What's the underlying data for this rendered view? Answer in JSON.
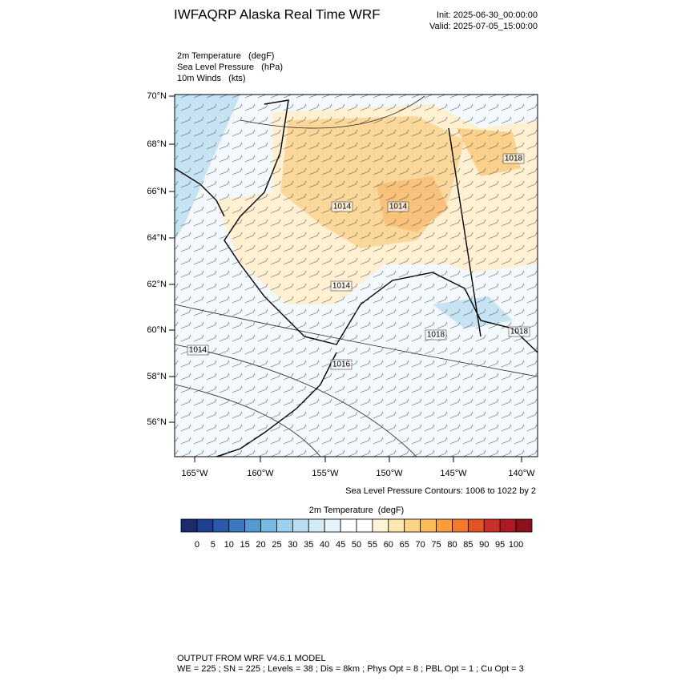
{
  "header": {
    "title": "IWFAQRP Alaska Real Time WRF",
    "init": "Init: 2025-06-30_00:00:00",
    "valid": "Valid: 2025-07-05_15:00:00"
  },
  "fields": [
    "2m Temperature   (degF)",
    "Sea Level Pressure   (hPa)",
    "10m Winds   (kts)"
  ],
  "map": {
    "lat_labels": [
      "70°N",
      "68°N",
      "66°N",
      "64°N",
      "62°N",
      "60°N",
      "58°N",
      "56°N"
    ],
    "lon_labels": [
      "165°W",
      "160°W",
      "155°W",
      "150°W",
      "145°W",
      "140°W"
    ],
    "contour_labels": [
      1014,
      1014,
      1014,
      1014,
      1018,
      1018,
      1018,
      1016
    ],
    "contour_note": "Sea Level Pressure Contours: 1006 to 1022 by 2"
  },
  "colorbar": {
    "title": "2m Temperature  (degF)",
    "colors": [
      "#1a2c6b",
      "#1f3f8f",
      "#2a5aa8",
      "#3a78c0",
      "#5499d2",
      "#79b8e3",
      "#9dd0ef",
      "#b9def2",
      "#d3ebf6",
      "#e8f4fa",
      "#ffffff",
      "#ffffff",
      "#fff4d6",
      "#ffe9ad",
      "#fdd585",
      "#fdbc5c",
      "#f99d3e",
      "#f27a2c",
      "#e05327",
      "#c9302a",
      "#ac1a25",
      "#8a1019"
    ],
    "labels": [
      0,
      5,
      10,
      15,
      20,
      25,
      30,
      35,
      40,
      45,
      50,
      55,
      60,
      65,
      70,
      75,
      80,
      85,
      90,
      95,
      100
    ]
  },
  "footer": [
    "OUTPUT FROM WRF V4.6.1 MODEL",
    "WE = 225 ; SN = 225 ; Levels = 38 ; Dis = 8km ; Phys Opt = 8 ; PBL Opt = 1 ; Cu Opt = 3"
  ]
}
